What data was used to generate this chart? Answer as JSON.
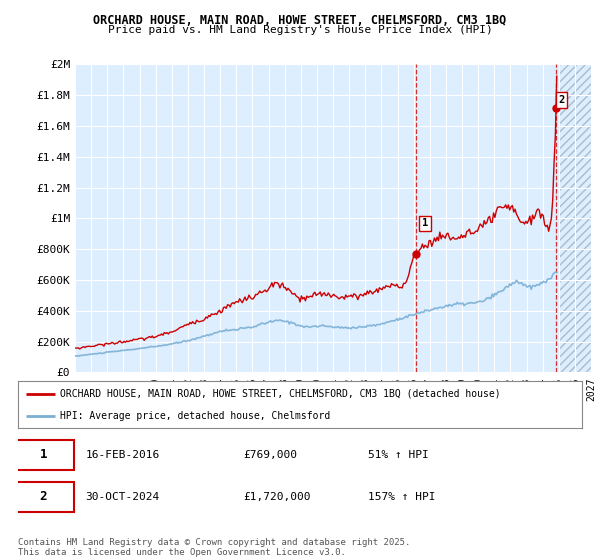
{
  "title1": "ORCHARD HOUSE, MAIN ROAD, HOWE STREET, CHELMSFORD, CM3 1BQ",
  "title2": "Price paid vs. HM Land Registry's House Price Index (HPI)",
  "legend1": "ORCHARD HOUSE, MAIN ROAD, HOWE STREET, CHELMSFORD, CM3 1BQ (detached house)",
  "legend2": "HPI: Average price, detached house, Chelmsford",
  "footer": "Contains HM Land Registry data © Crown copyright and database right 2025.\nThis data is licensed under the Open Government Licence v3.0.",
  "point1_date": "16-FEB-2016",
  "point1_price": "£769,000",
  "point1_hpi": "51% ↑ HPI",
  "point2_date": "30-OCT-2024",
  "point2_price": "£1,720,000",
  "point2_hpi": "157% ↑ HPI",
  "red_color": "#cc0000",
  "blue_color": "#7bafd4",
  "bg_color": "#ddeeff",
  "grid_color": "#ffffff",
  "hatch_color": "#bbccdd",
  "xmin": 1995.0,
  "xmax": 2027.0,
  "hatch_start": 2025.0,
  "ymin": 0,
  "ymax": 2000000,
  "point1_x": 2016.12,
  "point1_y": 769000,
  "point2_x": 2024.83,
  "point2_y": 1720000,
  "yticks": [
    0,
    200000,
    400000,
    600000,
    800000,
    1000000,
    1200000,
    1400000,
    1600000,
    1800000,
    2000000
  ],
  "ytick_labels": [
    "£0",
    "£200K",
    "£400K",
    "£600K",
    "£800K",
    "£1M",
    "£1.2M",
    "£1.4M",
    "£1.6M",
    "£1.8M",
    "£2M"
  ]
}
